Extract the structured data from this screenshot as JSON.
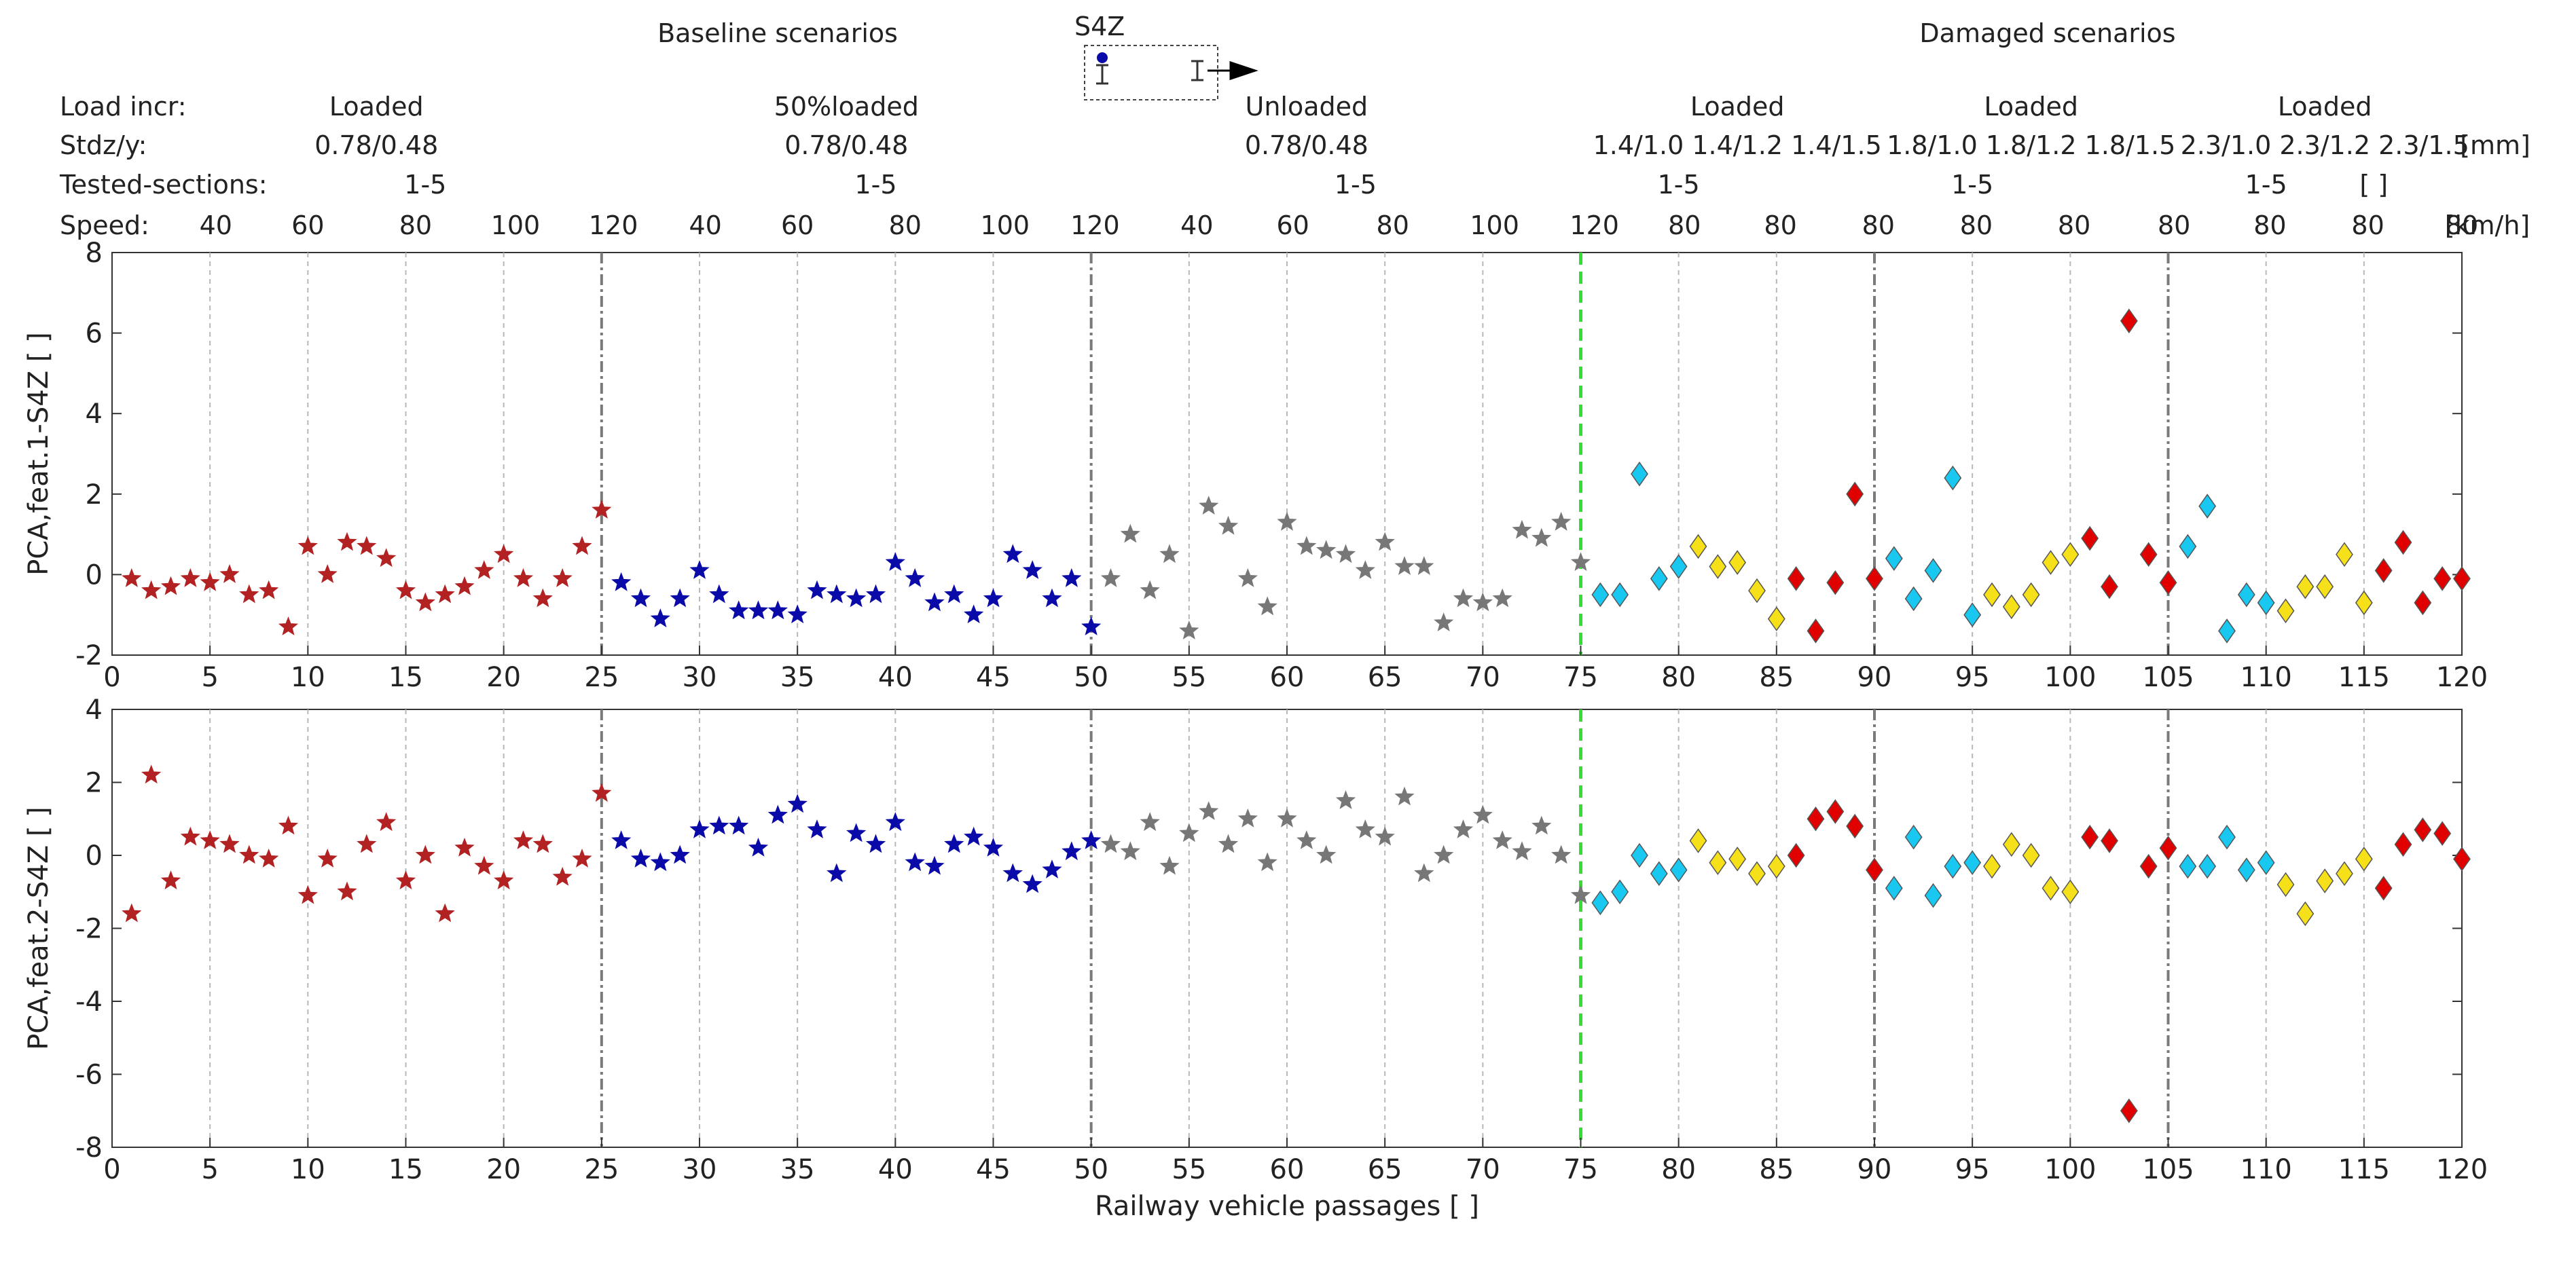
{
  "header": {
    "group_titles": {
      "baseline": "Baseline scenarios",
      "damaged": "Damaged scenarios"
    },
    "sensor": {
      "label": "S4Z"
    },
    "row_labels": {
      "load": "Load incr:",
      "stdz": "Stdz/y:",
      "sections": "Tested-sections:",
      "speed": "Speed:"
    },
    "load_values": [
      "Loaded",
      "50%loaded",
      "Unloaded",
      "Loaded",
      "Loaded",
      "Loaded"
    ],
    "stdz_values": [
      "0.78/0.48",
      "0.78/0.48",
      "0.78/0.48",
      "1.4/1.0 1.4/1.2 1.4/1.5",
      "1.8/1.0 1.8/1.2 1.8/1.5",
      "2.3/1.0 2.3/1.2 2.3/1.5"
    ],
    "stdz_unit": "[mm]",
    "section_values": [
      "1-5",
      "1-5",
      "1-5",
      "1-5",
      "1-5",
      "1-5"
    ],
    "section_unit": "[ ]",
    "speed_values": [
      "40",
      "60",
      "80",
      "100",
      "120",
      "40",
      "60",
      "80",
      "100",
      "120",
      "40",
      "60",
      "80",
      "100",
      "120",
      "80",
      "80",
      "80",
      "80",
      "80",
      "80",
      "80",
      "80",
      "80"
    ],
    "speed_unit": "[km/h]"
  },
  "chart_data": [
    {
      "type": "scatter",
      "ylabel": "PCA,feat.1-S4Z [ ]",
      "xlabel": "",
      "xlim": [
        0,
        120
      ],
      "ylim": [
        -2,
        8
      ],
      "yticks": [
        -2,
        0,
        2,
        4,
        6,
        8
      ],
      "xticks": [
        0,
        5,
        10,
        15,
        20,
        25,
        30,
        35,
        40,
        45,
        50,
        55,
        60,
        65,
        70,
        75,
        80,
        85,
        90,
        95,
        100,
        105,
        110,
        115,
        120
      ],
      "x": [
        1,
        2,
        3,
        4,
        5,
        6,
        7,
        8,
        9,
        10,
        11,
        12,
        13,
        14,
        15,
        16,
        17,
        18,
        19,
        20,
        21,
        22,
        23,
        24,
        25,
        26,
        27,
        28,
        29,
        30,
        31,
        32,
        33,
        34,
        35,
        36,
        37,
        38,
        39,
        40,
        41,
        42,
        43,
        44,
        45,
        46,
        47,
        48,
        49,
        50,
        51,
        52,
        53,
        54,
        55,
        56,
        57,
        58,
        59,
        60,
        61,
        62,
        63,
        64,
        65,
        66,
        67,
        68,
        69,
        70,
        71,
        72,
        73,
        74,
        75,
        76,
        77,
        78,
        79,
        80,
        81,
        82,
        83,
        84,
        85,
        86,
        87,
        88,
        89,
        90,
        91,
        92,
        93,
        94,
        95,
        96,
        97,
        98,
        99,
        100,
        101,
        102,
        103,
        104,
        105,
        106,
        107,
        108,
        109,
        110,
        111,
        112,
        113,
        114,
        115,
        116,
        117,
        118,
        119,
        120
      ],
      "values": [
        -0.1,
        -0.4,
        -0.3,
        -0.1,
        -0.2,
        0,
        -0.5,
        -0.4,
        -1.3,
        0.7,
        0,
        0.8,
        0.7,
        0.4,
        -0.4,
        -0.7,
        -0.5,
        -0.3,
        0.1,
        0.5,
        -0.1,
        -0.6,
        -0.1,
        0.7,
        1.6,
        -0.2,
        -0.6,
        -1.1,
        -0.6,
        0.1,
        -0.5,
        -0.9,
        -0.9,
        -0.9,
        -1,
        -0.4,
        -0.5,
        -0.6,
        -0.5,
        0.3,
        -0.1,
        -0.7,
        -0.5,
        -1,
        -0.6,
        0.5,
        0.1,
        -0.6,
        -0.1,
        -1.3,
        -0.1,
        1,
        -0.4,
        0.5,
        -1.4,
        1.7,
        1.2,
        -0.1,
        -0.8,
        1.3,
        0.7,
        0.6,
        0.5,
        0.1,
        0.8,
        0.2,
        0.2,
        -1.2,
        -0.6,
        -0.7,
        -0.6,
        1.1,
        0.9,
        1.3,
        0.3,
        -0.5,
        -0.5,
        2.5,
        -0.1,
        0.2,
        0.7,
        0.2,
        0.3,
        -0.4,
        -1.1,
        -0.1,
        -1.4,
        -0.2,
        2,
        -0.1,
        0.4,
        -0.6,
        0.1,
        2.4,
        -1,
        -0.5,
        -0.8,
        -0.5,
        0.3,
        0.5,
        0.9,
        -0.3,
        6.3,
        0.5,
        -0.2,
        0.7,
        1.7,
        -1.4,
        -0.5,
        -0.7,
        -0.9,
        -0.3,
        -0.3,
        0.5,
        -0.7,
        0.1,
        0.8,
        -0.7,
        -0.1,
        -0.1
      ],
      "series_ranges": [
        {
          "name": "Baseline loaded",
          "from": 1,
          "to": 25,
          "color": "#b22222",
          "marker": "star"
        },
        {
          "name": "Baseline 50% loaded",
          "from": 26,
          "to": 50,
          "color": "#0a0aa8",
          "marker": "star"
        },
        {
          "name": "Baseline unloaded",
          "from": 51,
          "to": 75,
          "color": "#777777",
          "marker": "star"
        }
      ]
    },
    {
      "type": "scatter",
      "ylabel": "PCA,feat.2-S4Z [ ]",
      "xlabel": "Railway vehicle passages [ ]",
      "xlim": [
        0,
        120
      ],
      "ylim": [
        -8,
        4
      ],
      "yticks": [
        -8,
        -6,
        -4,
        -2,
        0,
        2,
        4
      ],
      "xticks": [
        0,
        5,
        10,
        15,
        20,
        25,
        30,
        35,
        40,
        45,
        50,
        55,
        60,
        65,
        70,
        75,
        80,
        85,
        90,
        95,
        100,
        105,
        110,
        115,
        120
      ],
      "x": [
        1,
        2,
        3,
        4,
        5,
        6,
        7,
        8,
        9,
        10,
        11,
        12,
        13,
        14,
        15,
        16,
        17,
        18,
        19,
        20,
        21,
        22,
        23,
        24,
        25,
        26,
        27,
        28,
        29,
        30,
        31,
        32,
        33,
        34,
        35,
        36,
        37,
        38,
        39,
        40,
        41,
        42,
        43,
        44,
        45,
        46,
        47,
        48,
        49,
        50,
        51,
        52,
        53,
        54,
        55,
        56,
        57,
        58,
        59,
        60,
        61,
        62,
        63,
        64,
        65,
        66,
        67,
        68,
        69,
        70,
        71,
        72,
        73,
        74,
        75,
        76,
        77,
        78,
        79,
        80,
        81,
        82,
        83,
        84,
        85,
        86,
        87,
        88,
        89,
        90,
        91,
        92,
        93,
        94,
        95,
        96,
        97,
        98,
        99,
        100,
        101,
        102,
        103,
        104,
        105,
        106,
        107,
        108,
        109,
        110,
        111,
        112,
        113,
        114,
        115,
        116,
        117,
        118,
        119,
        120
      ],
      "values": [
        -1.6,
        2.2,
        -0.7,
        0.5,
        0.4,
        0.3,
        0,
        -0.1,
        0.8,
        -1.1,
        -0.1,
        -1,
        0.3,
        0.9,
        -0.7,
        0,
        -1.6,
        0.2,
        -0.3,
        -0.7,
        0.4,
        0.3,
        -0.6,
        -0.1,
        1.7,
        0.4,
        -0.1,
        -0.2,
        0,
        0.7,
        0.8,
        0.8,
        0.2,
        1.1,
        1.4,
        0.7,
        -0.5,
        0.6,
        0.3,
        0.9,
        -0.2,
        -0.3,
        0.3,
        0.5,
        0.2,
        -0.5,
        -0.8,
        -0.4,
        0.1,
        0.4,
        0.3,
        0.1,
        0.9,
        -0.3,
        0.6,
        1.2,
        0.3,
        1,
        -0.2,
        1,
        0.4,
        0,
        1.5,
        0.7,
        0.5,
        1.6,
        -0.5,
        0,
        0.7,
        1.1,
        0.4,
        0.1,
        0.8,
        0,
        -1.1,
        -1.3,
        -1,
        0,
        -0.5,
        -0.4,
        0.4,
        -0.2,
        -0.1,
        -0.5,
        -0.3,
        0,
        1,
        1.2,
        0.8,
        -0.4,
        -0.9,
        0.5,
        -1.1,
        -0.3,
        -0.2,
        -0.3,
        0.3,
        0,
        -0.9,
        -1,
        0.5,
        0.4,
        -7,
        -0.3,
        0.2,
        -0.3,
        -0.3,
        0.5,
        -0.4,
        -0.2,
        -0.8,
        -1.6,
        -0.7,
        -0.5,
        -0.1,
        -0.9,
        0.3,
        0.7,
        0.6,
        -0.1
      ],
      "series_ranges": [
        {
          "name": "Baseline loaded",
          "from": 1,
          "to": 25,
          "color": "#b22222",
          "marker": "star"
        },
        {
          "name": "Baseline 50% loaded",
          "from": 26,
          "to": 50,
          "color": "#0a0aa8",
          "marker": "star"
        },
        {
          "name": "Baseline unloaded",
          "from": 51,
          "to": 75,
          "color": "#777777",
          "marker": "star"
        }
      ]
    }
  ],
  "damage_colors": {
    "cyan": "#19c8f0",
    "yellow": "#f5e01a",
    "red": "#e00000"
  },
  "threshold_color": "#33dd33",
  "damage_pattern": [
    "cyan",
    "cyan",
    "cyan",
    "cyan",
    "cyan",
    "yellow",
    "yellow",
    "yellow",
    "yellow",
    "yellow",
    "red",
    "red",
    "red",
    "red",
    "red"
  ]
}
